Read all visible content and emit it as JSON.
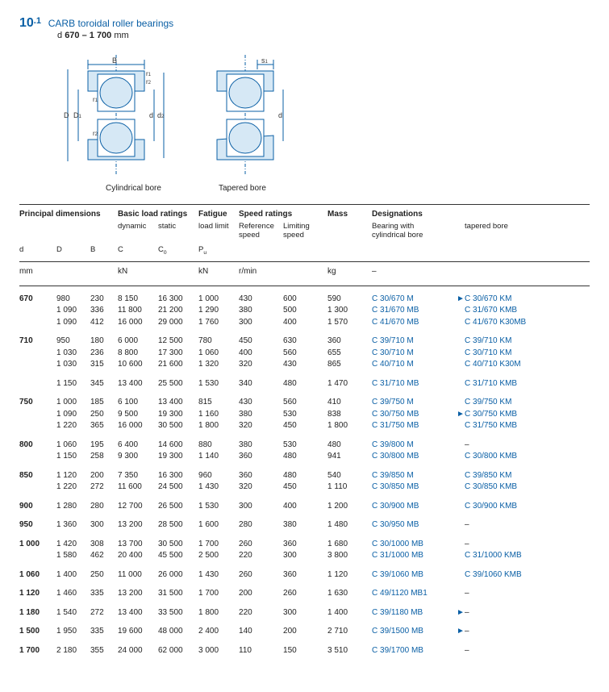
{
  "header": {
    "secnum_main": "10",
    "secnum_sub": ".1",
    "title": "CARB toroidal roller bearings",
    "range_prefix": "d",
    "range_value": "670 – 1 700",
    "range_unit": "mm"
  },
  "captions": {
    "cyl": "Cylindrical bore",
    "tap": "Tapered bore"
  },
  "colgroups": {
    "principal": "Principal dimensions",
    "basic": "Basic load ratings",
    "basic_sub1": "dynamic",
    "basic_sub2": "static",
    "fatigue": "Fatigue",
    "fatigue_sub": "load limit",
    "speed": "Speed ratings",
    "speed_sub1": "Reference",
    "speed_sub2": "Limiting",
    "speed_sub3": "speed",
    "mass": "Mass",
    "designations": "Designations",
    "designations_sub1": "Bearing with",
    "designations_sub2": "cylindrical bore",
    "designations_tap": "tapered bore"
  },
  "symbols": {
    "d": "d",
    "D": "D",
    "B": "B",
    "C": "C",
    "C0": "C",
    "C0_sub": "0",
    "Pu": "P",
    "Pu_sub": "u"
  },
  "units": {
    "mm": "mm",
    "kN": "kN",
    "rmin": "r/min",
    "kg": "kg",
    "dash": "–"
  },
  "diagram_labels": {
    "B": "B",
    "r1": "r",
    "r2": "r",
    "D": "D",
    "D1": "D",
    "d": "d",
    "d2": "d",
    "s1": "s"
  },
  "rows": [
    {
      "d": "670",
      "D": "980",
      "B": "230",
      "C": "8 150",
      "C0": "16 300",
      "Pu": "1 000",
      "ref": "430",
      "lim": "600",
      "mass": "590",
      "cyl": "C 30/670 M",
      "mk": "►",
      "tap": "C 30/670 KM",
      "top": true
    },
    {
      "d": "",
      "D": "1 090",
      "B": "336",
      "C": "11 800",
      "C0": "21 200",
      "Pu": "1 290",
      "ref": "380",
      "lim": "500",
      "mass": "1 300",
      "cyl": "C 31/670 MB",
      "mk": "",
      "tap": "C 31/670 KMB"
    },
    {
      "d": "",
      "D": "1 090",
      "B": "412",
      "C": "16 000",
      "C0": "29 000",
      "Pu": "1 760",
      "ref": "300",
      "lim": "400",
      "mass": "1 570",
      "cyl": "C 41/670 MB",
      "mk": "",
      "tap": "C 41/670 K30MB"
    },
    {
      "d": "710",
      "D": "950",
      "B": "180",
      "C": "6 000",
      "C0": "12 500",
      "Pu": "780",
      "ref": "450",
      "lim": "630",
      "mass": "360",
      "cyl": "C 39/710 M",
      "mk": "",
      "tap": "C 39/710 KM",
      "top": true
    },
    {
      "d": "",
      "D": "1 030",
      "B": "236",
      "C": "8 800",
      "C0": "17 300",
      "Pu": "1 060",
      "ref": "400",
      "lim": "560",
      "mass": "655",
      "cyl": "C 30/710 M",
      "mk": "",
      "tap": "C 30/710 KM"
    },
    {
      "d": "",
      "D": "1 030",
      "B": "315",
      "C": "10 600",
      "C0": "21 600",
      "Pu": "1 320",
      "ref": "320",
      "lim": "430",
      "mass": "865",
      "cyl": "C 40/710 M",
      "mk": "",
      "tap": "C 40/710 K30M"
    },
    {
      "d": "",
      "D": "1 150",
      "B": "345",
      "C": "13 400",
      "C0": "25 500",
      "Pu": "1 530",
      "ref": "340",
      "lim": "480",
      "mass": "1 470",
      "cyl": "C 31/710 MB",
      "mk": "",
      "tap": "C 31/710 KMB",
      "top": true
    },
    {
      "d": "750",
      "D": "1 000",
      "B": "185",
      "C": "6 100",
      "C0": "13 400",
      "Pu": "815",
      "ref": "430",
      "lim": "560",
      "mass": "410",
      "cyl": "C 39/750 M",
      "mk": "",
      "tap": "C 39/750 KM",
      "top": true
    },
    {
      "d": "",
      "D": "1 090",
      "B": "250",
      "C": "9 500",
      "C0": "19 300",
      "Pu": "1 160",
      "ref": "380",
      "lim": "530",
      "mass": "838",
      "cyl": "C 30/750 MB",
      "mk": "►",
      "tap": "C 30/750 KMB"
    },
    {
      "d": "",
      "D": "1 220",
      "B": "365",
      "C": "16 000",
      "C0": "30 500",
      "Pu": "1 800",
      "ref": "320",
      "lim": "450",
      "mass": "1 800",
      "cyl": "C 31/750 MB",
      "mk": "",
      "tap": "C 31/750 KMB"
    },
    {
      "d": "800",
      "D": "1 060",
      "B": "195",
      "C": "6 400",
      "C0": "14 600",
      "Pu": "880",
      "ref": "380",
      "lim": "530",
      "mass": "480",
      "cyl": "C 39/800 M",
      "mk": "",
      "tap": "–",
      "top": true
    },
    {
      "d": "",
      "D": "1 150",
      "B": "258",
      "C": "9 300",
      "C0": "19 300",
      "Pu": "1 140",
      "ref": "360",
      "lim": "480",
      "mass": "941",
      "cyl": "C 30/800 MB",
      "mk": "",
      "tap": "C 30/800 KMB"
    },
    {
      "d": "850",
      "D": "1 120",
      "B": "200",
      "C": "7 350",
      "C0": "16 300",
      "Pu": "960",
      "ref": "360",
      "lim": "480",
      "mass": "540",
      "cyl": "C 39/850 M",
      "mk": "",
      "tap": "C 39/850 KM",
      "top": true
    },
    {
      "d": "",
      "D": "1 220",
      "B": "272",
      "C": "11 600",
      "C0": "24 500",
      "Pu": "1 430",
      "ref": "320",
      "lim": "450",
      "mass": "1 110",
      "cyl": "C 30/850 MB",
      "mk": "",
      "tap": "C 30/850 KMB"
    },
    {
      "d": "900",
      "D": "1 280",
      "B": "280",
      "C": "12 700",
      "C0": "26 500",
      "Pu": "1 530",
      "ref": "300",
      "lim": "400",
      "mass": "1 200",
      "cyl": "C 30/900 MB",
      "mk": "",
      "tap": "C 30/900 KMB",
      "top": true
    },
    {
      "d": "950",
      "D": "1 360",
      "B": "300",
      "C": "13 200",
      "C0": "28 500",
      "Pu": "1 600",
      "ref": "280",
      "lim": "380",
      "mass": "1 480",
      "cyl": "C 30/950 MB",
      "mk": "",
      "tap": "–",
      "top": true
    },
    {
      "d": "1 000",
      "D": "1 420",
      "B": "308",
      "C": "13 700",
      "C0": "30 500",
      "Pu": "1 700",
      "ref": "260",
      "lim": "360",
      "mass": "1 680",
      "cyl": "C 30/1000 MB",
      "mk": "",
      "tap": "–",
      "top": true
    },
    {
      "d": "",
      "D": "1 580",
      "B": "462",
      "C": "20 400",
      "C0": "45 500",
      "Pu": "2 500",
      "ref": "220",
      "lim": "300",
      "mass": "3 800",
      "cyl": "C 31/1000 MB",
      "mk": "",
      "tap": "C 31/1000 KMB"
    },
    {
      "d": "1 060",
      "D": "1 400",
      "B": "250",
      "C": "11 000",
      "C0": "26 000",
      "Pu": "1 430",
      "ref": "260",
      "lim": "360",
      "mass": "1 120",
      "cyl": "C 39/1060 MB",
      "mk": "",
      "tap": "C 39/1060 KMB",
      "top": true
    },
    {
      "d": "1 120",
      "D": "1 460",
      "B": "335",
      "C": "13 200",
      "C0": "31 500",
      "Pu": "1 700",
      "ref": "200",
      "lim": "260",
      "mass": "1 630",
      "cyl": "C 49/1120 MB1",
      "mk": "",
      "tap": "–",
      "top": true
    },
    {
      "d": "1 180",
      "D": "1 540",
      "B": "272",
      "C": "13 400",
      "C0": "33 500",
      "Pu": "1 800",
      "ref": "220",
      "lim": "300",
      "mass": "1 400",
      "cyl": "C 39/1180 MB",
      "mk": "►",
      "tap": "–",
      "top": true
    },
    {
      "d": "1 500",
      "D": "1 950",
      "B": "335",
      "C": "19 600",
      "C0": "48 000",
      "Pu": "2 400",
      "ref": "140",
      "lim": "200",
      "mass": "2 710",
      "cyl": "C 39/1500 MB",
      "mk": "►",
      "tap": "–",
      "top": true
    },
    {
      "d": "1 700",
      "D": "2 180",
      "B": "355",
      "C": "24 000",
      "C0": "62 000",
      "Pu": "3 000",
      "ref": "110",
      "lim": "150",
      "mass": "3 510",
      "cyl": "C 39/1700 MB",
      "mk": "",
      "tap": "–",
      "top": true
    }
  ],
  "style": {
    "link_color": "#0a5fa5",
    "text_color": "#222222",
    "rule_color": "#333333",
    "font_family": "Arial",
    "body_font_size": 10,
    "diagram_stroke": "#0a5fa5",
    "diagram_fill": "#d6e8f5"
  }
}
